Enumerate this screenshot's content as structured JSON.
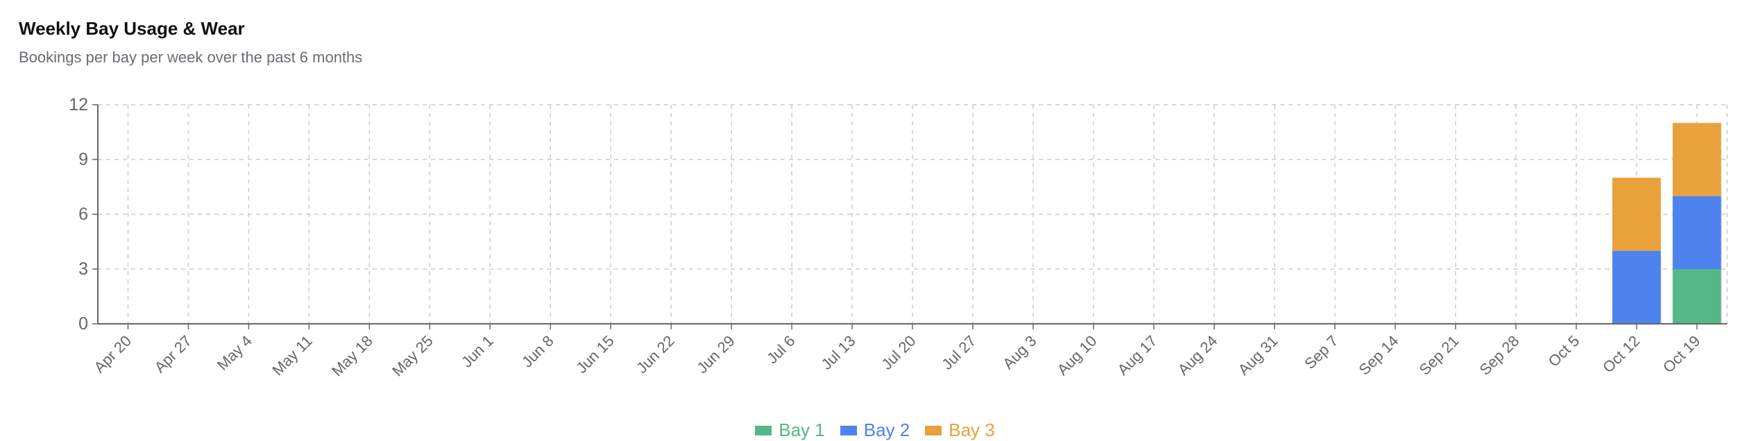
{
  "title": "Weekly Bay Usage & Wear",
  "subtitle": "Bookings per bay per week over the past 6 months",
  "chart_data": {
    "type": "bar",
    "stacked": true,
    "categories": [
      "Apr 20",
      "Apr 27",
      "May 4",
      "May 11",
      "May 18",
      "May 25",
      "Jun 1",
      "Jun 8",
      "Jun 15",
      "Jun 22",
      "Jun 29",
      "Jul 6",
      "Jul 13",
      "Jul 20",
      "Jul 27",
      "Aug 3",
      "Aug 10",
      "Aug 17",
      "Aug 24",
      "Aug 31",
      "Sep 7",
      "Sep 14",
      "Sep 21",
      "Sep 28",
      "Oct 5",
      "Oct 12",
      "Oct 19"
    ],
    "series": [
      {
        "name": "Bay 1",
        "color": "#55b786",
        "values": [
          0,
          0,
          0,
          0,
          0,
          0,
          0,
          0,
          0,
          0,
          0,
          0,
          0,
          0,
          0,
          0,
          0,
          0,
          0,
          0,
          0,
          0,
          0,
          0,
          0,
          0,
          3
        ]
      },
      {
        "name": "Bay 2",
        "color": "#4e82ed",
        "values": [
          0,
          0,
          0,
          0,
          0,
          0,
          0,
          0,
          0,
          0,
          0,
          0,
          0,
          0,
          0,
          0,
          0,
          0,
          0,
          0,
          0,
          0,
          0,
          0,
          0,
          4,
          4
        ]
      },
      {
        "name": "Bay 3",
        "color": "#e8a13b",
        "values": [
          0,
          0,
          0,
          0,
          0,
          0,
          0,
          0,
          0,
          0,
          0,
          0,
          0,
          0,
          0,
          0,
          0,
          0,
          0,
          0,
          0,
          0,
          0,
          0,
          0,
          4,
          4
        ]
      }
    ],
    "ylim": [
      0,
      12
    ],
    "yticks": [
      0,
      3,
      6,
      9,
      12
    ],
    "grid": true,
    "legend": "bottom"
  }
}
